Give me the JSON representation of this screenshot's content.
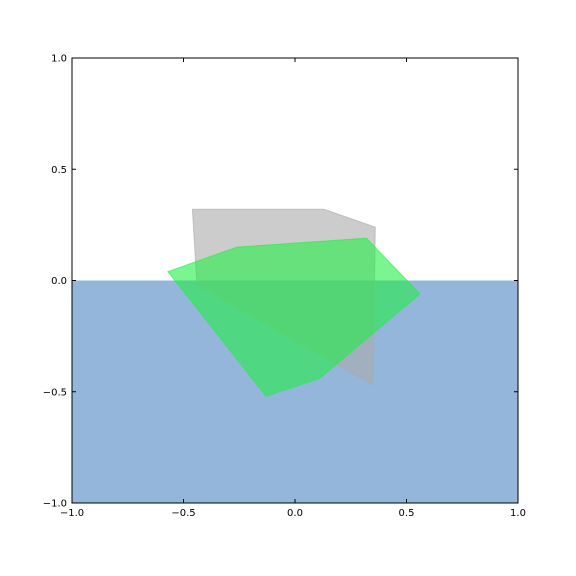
{
  "chart_data": {
    "type": "area",
    "title": "",
    "xlabel": "",
    "ylabel": "",
    "xlim": [
      -1.0,
      1.0
    ],
    "ylim": [
      -1.0,
      1.0
    ],
    "grid": false,
    "x_ticks": [
      {
        "value": -1.0,
        "label": "−1.0"
      },
      {
        "value": -0.5,
        "label": "−0.5"
      },
      {
        "value": 0.0,
        "label": "0.0"
      },
      {
        "value": 0.5,
        "label": "0.5"
      },
      {
        "value": 1.0,
        "label": "1.0"
      }
    ],
    "y_ticks": [
      {
        "value": -1.0,
        "label": "−1.0"
      },
      {
        "value": -0.5,
        "label": "−0.5"
      },
      {
        "value": 0.0,
        "label": "0.0"
      },
      {
        "value": 0.5,
        "label": "0.5"
      },
      {
        "value": 1.0,
        "label": "1.0"
      }
    ],
    "regions": [
      {
        "id": "lower-half-region",
        "color": "#94b6db",
        "opacity": 1.0,
        "points": [
          [
            -1.0,
            0.0
          ],
          [
            1.0,
            0.0
          ],
          [
            1.0,
            -1.0
          ],
          [
            -1.0,
            -1.0
          ]
        ]
      }
    ],
    "polygons": [
      {
        "id": "gray-polygon",
        "color": "#aaaaaa",
        "opacity": 0.6,
        "points": [
          [
            -0.46,
            0.32
          ],
          [
            0.13,
            0.32
          ],
          [
            0.36,
            0.24
          ],
          [
            0.35,
            -0.47
          ],
          [
            -0.44,
            -0.02
          ]
        ]
      },
      {
        "id": "green-polygon",
        "color": "#22ee44",
        "opacity": 0.6,
        "points": [
          [
            -0.57,
            0.04
          ],
          [
            -0.26,
            0.15
          ],
          [
            0.32,
            0.19
          ],
          [
            0.56,
            -0.06
          ],
          [
            0.11,
            -0.44
          ],
          [
            -0.13,
            -0.52
          ]
        ]
      }
    ]
  }
}
